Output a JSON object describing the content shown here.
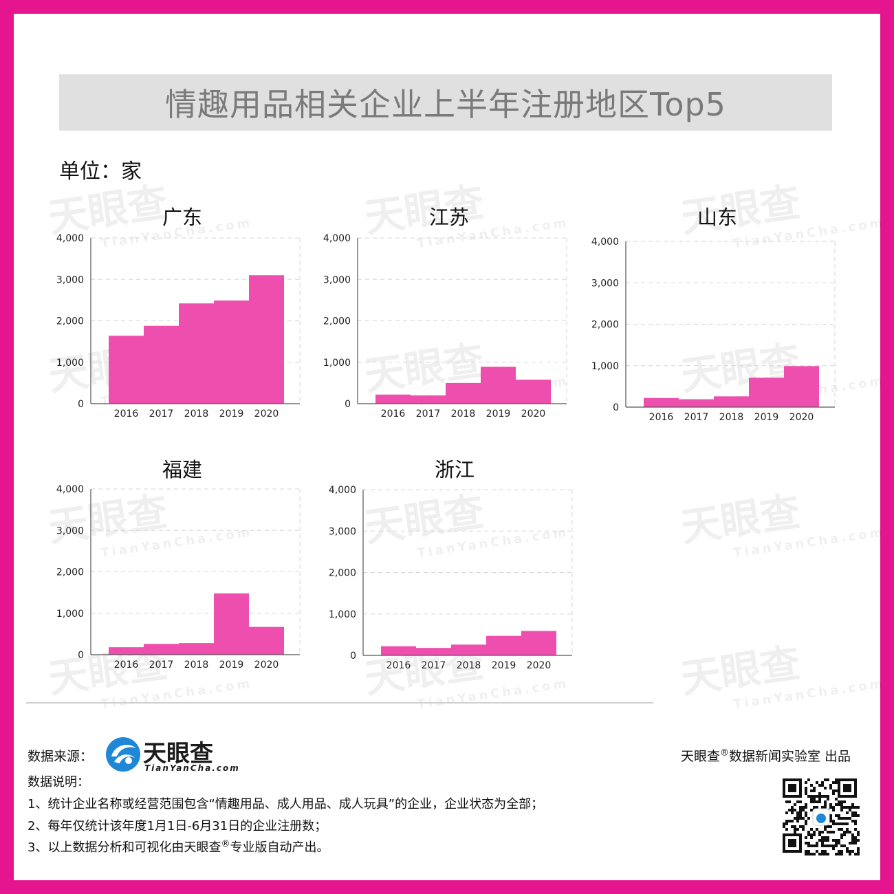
{
  "title": "情趣用品相关企业上半年注册地区Top5",
  "unit_label": "单位：家",
  "colors": {
    "frame": "#e5148f",
    "bar": "#ee4fae"
  },
  "chart_data": [
    {
      "type": "bar",
      "title": "广东",
      "categories": [
        "2016",
        "2017",
        "2018",
        "2019",
        "2020"
      ],
      "values": [
        1640,
        1880,
        2420,
        2490,
        3100
      ],
      "ylim": [
        0,
        4000
      ],
      "yticks": [
        "0",
        "1,000",
        "2,000",
        "3,000",
        "4,000"
      ]
    },
    {
      "type": "bar",
      "title": "江苏",
      "categories": [
        "2016",
        "2017",
        "2018",
        "2019",
        "2020"
      ],
      "values": [
        220,
        200,
        500,
        890,
        580
      ],
      "ylim": [
        0,
        4000
      ],
      "yticks": [
        "0",
        "1,000",
        "2,000",
        "3,000",
        "4,000"
      ]
    },
    {
      "type": "bar",
      "title": "山东",
      "categories": [
        "2016",
        "2017",
        "2018",
        "2019",
        "2020"
      ],
      "values": [
        220,
        190,
        260,
        710,
        990
      ],
      "ylim": [
        0,
        4000
      ],
      "yticks": [
        "0",
        "1,000",
        "2,000",
        "3,000",
        "4,000"
      ]
    },
    {
      "type": "bar",
      "title": "福建",
      "categories": [
        "2016",
        "2017",
        "2018",
        "2019",
        "2020"
      ],
      "values": [
        180,
        260,
        280,
        1480,
        670
      ],
      "ylim": [
        0,
        4000
      ],
      "yticks": [
        "0",
        "1,000",
        "2,000",
        "3,000",
        "4,000"
      ]
    },
    {
      "type": "bar",
      "title": "浙江",
      "categories": [
        "2016",
        "2017",
        "2018",
        "2019",
        "2020"
      ],
      "values": [
        220,
        180,
        260,
        470,
        590
      ],
      "ylim": [
        0,
        4000
      ],
      "yticks": [
        "0",
        "1,000",
        "2,000",
        "3,000",
        "4,000"
      ]
    }
  ],
  "watermark": {
    "main": "天眼查",
    "sub": "TianYanCha.com"
  },
  "footer": {
    "source_label": "数据来源：",
    "logo_text": "天眼查",
    "logo_sub": "TianYanCha.com",
    "producer_pre": "天眼查",
    "reg_mark": "®",
    "producer_post": "数据新闻实验室 出品",
    "notes_label": "数据说明：",
    "note1": "1、统计企业名称或经营范围包含“情趣用品、成人用品、成人玩具”的企业，企业状态为全部；",
    "note2": "2、每年仅统计该年度1月1日-6月31日的企业注册数；",
    "note3_pre": "3、以上数据分析和可视化由天眼查",
    "note3_post": "专业版自动产出。"
  }
}
